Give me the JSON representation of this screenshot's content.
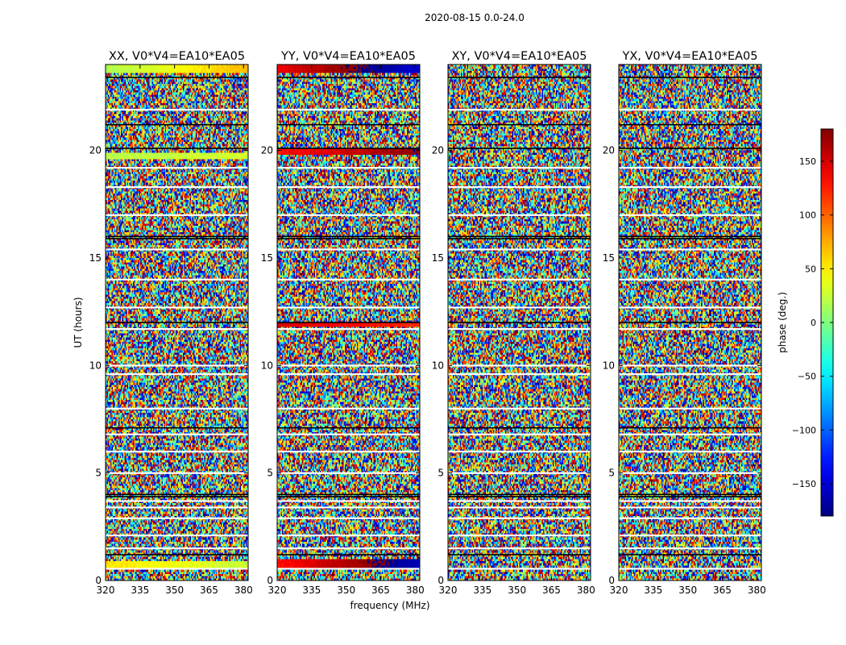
{
  "figure_title": "2020-08-15 0.0-24.0",
  "chart_data": {
    "type": "heatmap",
    "title": "2020-08-15 0.0-24.0",
    "xlabel": "frequency (MHz)",
    "ylabel": "UT (hours)",
    "xlim": [
      320,
      382
    ],
    "ylim": [
      0,
      24
    ],
    "x_ticks": [
      320,
      335,
      350,
      365,
      380
    ],
    "y_ticks": [
      0,
      5,
      10,
      15,
      20
    ],
    "panels": [
      {
        "title": "XX, V0*V4=EA10*EA05",
        "pol": "XX",
        "coherent_bands": [
          {
            "t0": 23.6,
            "t1": 24.0,
            "phase_start": 15,
            "phase_end": 70
          },
          {
            "t0": 19.6,
            "t1": 19.9,
            "phase_start": 20,
            "phase_end": 30
          },
          {
            "t0": 0.5,
            "t1": 0.9,
            "phase_start": 55,
            "phase_end": 25
          }
        ]
      },
      {
        "title": "YY, V0*V4=EA10*EA05",
        "pol": "YY",
        "coherent_bands": [
          {
            "t0": 23.6,
            "t1": 24.0,
            "phase_start": 140,
            "phase_end": -150
          },
          {
            "t0": 19.8,
            "t1": 20.1,
            "phase_start": 130,
            "phase_end": 175
          },
          {
            "t0": 11.8,
            "t1": 12.0,
            "phase_start": 150,
            "phase_end": 120
          },
          {
            "t0": 0.5,
            "t1": 1.0,
            "phase_start": 130,
            "phase_end": -160
          }
        ]
      },
      {
        "title": "XY, V0*V4=EA10*EA05",
        "pol": "XY",
        "coherent_bands": []
      },
      {
        "title": "YX, V0*V4=EA10*EA05",
        "pol": "YX",
        "coherent_bands": []
      }
    ],
    "flagged_hours_white": [
      21.9,
      19.2,
      18.3,
      17.0,
      15.4,
      14.0,
      12.7,
      11.7,
      10.0,
      9.6,
      8.0,
      6.8,
      6.0,
      5.0,
      3.7,
      3.4,
      2.9,
      2.1,
      1.5,
      0.55
    ],
    "dark_lines_hours": [
      23.4,
      21.2,
      20.1,
      16.0,
      15.9,
      12.0,
      7.1,
      4.0,
      3.9,
      1.2
    ],
    "colorbar": {
      "label": "phase (deg.)",
      "min": -180,
      "max": 180,
      "ticks": [
        -150,
        -100,
        -50,
        0,
        50,
        100,
        150
      ],
      "colormap": "jet"
    }
  }
}
